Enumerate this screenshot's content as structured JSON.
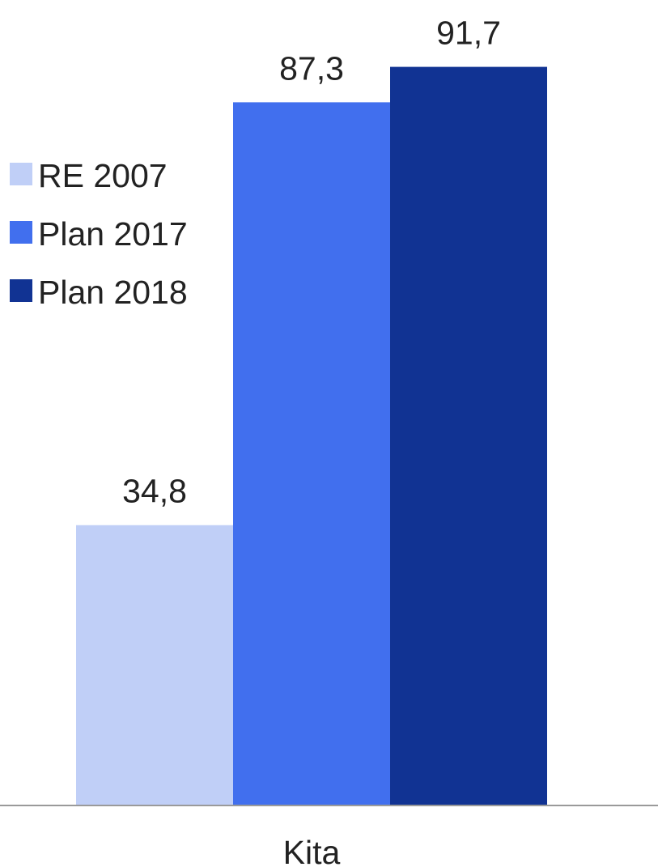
{
  "chart_data": {
    "type": "bar",
    "categories": [
      "Kita"
    ],
    "series": [
      {
        "name": "RE 2007",
        "values": [
          34.8
        ],
        "value_label": "34,8",
        "color": "#c0cff7"
      },
      {
        "name": "Plan 2017",
        "values": [
          87.3
        ],
        "value_label": "87,3",
        "color": "#416fee"
      },
      {
        "name": "Plan 2018",
        "values": [
          91.7
        ],
        "value_label": "91,7",
        "color": "#113393"
      }
    ],
    "ylim": [
      0,
      100
    ],
    "grid": false,
    "legend_position": "left"
  }
}
